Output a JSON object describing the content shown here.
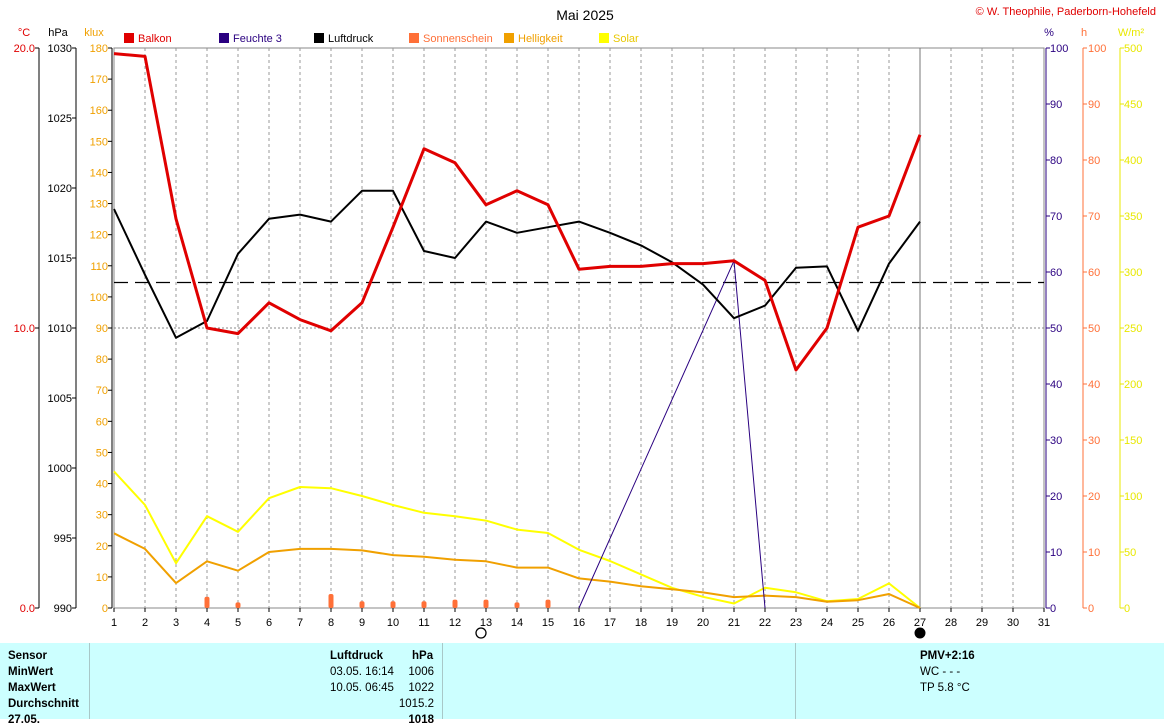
{
  "title": "Mai 2025",
  "copyright": "© W. Theophile, Paderborn-Hohefeld",
  "colors": {
    "balkon": "#e00000",
    "feuchte": "#2a0080",
    "luftdruck": "#000000",
    "sonnenschein": "#ff7038",
    "helligkeit": "#f0a000",
    "solar": "#ffff00",
    "axis_temp": "#e00000",
    "axis_feuchte": "#2a0080",
    "axis_sun": "#ff7038",
    "axis_helligkeit": "#f0a000",
    "axis_solar": "#e8e800",
    "stats_bg": "#ccffff"
  },
  "chart_data": {
    "type": "line",
    "title": "Mai 2025",
    "x": [
      1,
      2,
      3,
      4,
      5,
      6,
      7,
      8,
      9,
      10,
      11,
      12,
      13,
      14,
      15,
      16,
      17,
      18,
      19,
      20,
      21,
      22,
      23,
      24,
      25,
      26,
      27,
      28,
      29,
      30,
      31
    ],
    "x_ticks": [
      "1",
      "2",
      "3",
      "4",
      "5",
      "6",
      "7",
      "8",
      "9",
      "10",
      "11",
      "12",
      "13",
      "14",
      "15",
      "16",
      "17",
      "18",
      "19",
      "20",
      "21",
      "22",
      "23",
      "24",
      "25",
      "26",
      "27",
      "28",
      "29",
      "30",
      "31"
    ],
    "xlim": [
      1,
      31
    ],
    "grid": true,
    "axes": {
      "temp": {
        "unit": "°C",
        "range": [
          0,
          20
        ],
        "ticks": [
          "0.0",
          "10.0",
          "20.0"
        ],
        "tick_values": [
          0,
          10,
          20
        ]
      },
      "pressure": {
        "unit": "hPa",
        "range": [
          990,
          1030
        ],
        "ticks": [
          "990",
          "995",
          "1000",
          "1005",
          "1010",
          "1015",
          "1020",
          "1025",
          "1030"
        ]
      },
      "klux": {
        "unit": "klux",
        "range": [
          0,
          180
        ],
        "ticks": [
          "0",
          "10",
          "20",
          "30",
          "40",
          "50",
          "60",
          "70",
          "80",
          "90",
          "100",
          "110",
          "120",
          "130",
          "140",
          "150",
          "160",
          "170",
          "180"
        ]
      },
      "humidity": {
        "unit": "%",
        "range": [
          0,
          100
        ],
        "ticks": [
          "0",
          "10",
          "20",
          "30",
          "40",
          "50",
          "60",
          "70",
          "80",
          "90",
          "100"
        ]
      },
      "sunshine": {
        "unit": "h",
        "range": [
          0,
          100
        ],
        "ticks": [
          "0",
          "10",
          "20",
          "30",
          "40",
          "50",
          "60",
          "70",
          "80",
          "90",
          "100"
        ]
      },
      "solar": {
        "unit": "W/m²",
        "range": [
          0,
          500
        ],
        "ticks": [
          "0",
          "50",
          "100",
          "150",
          "200",
          "250",
          "300",
          "350",
          "400",
          "450",
          "500"
        ]
      }
    },
    "legend": [
      "Balkon",
      "Feuchte 3",
      "Luftdruck",
      "Sonnenschein",
      "Helligkeit",
      "Solar"
    ],
    "series": [
      {
        "name": "Balkon",
        "axis": "temp",
        "x": [
          1,
          2,
          3,
          4,
          5,
          6,
          7,
          8,
          9,
          10,
          11,
          12,
          13,
          14,
          15,
          16,
          17,
          18,
          19,
          20,
          21,
          22,
          23,
          24,
          25,
          26,
          27
        ],
        "values": [
          19.8,
          19.7,
          13.9,
          10.0,
          9.8,
          10.9,
          10.3,
          9.9,
          10.9,
          13.6,
          16.4,
          15.9,
          14.4,
          14.9,
          14.4,
          12.1,
          12.2,
          12.2,
          12.3,
          12.3,
          12.4,
          11.7,
          8.5,
          10.0,
          13.6,
          14.0,
          16.9
        ]
      },
      {
        "name": "Luftdruck",
        "axis": "pressure",
        "x": [
          1,
          2,
          3,
          4,
          5,
          6,
          7,
          8,
          9,
          10,
          11,
          12,
          13,
          14,
          15,
          16,
          17,
          18,
          19,
          20,
          21,
          22,
          23,
          24,
          25,
          26,
          27
        ],
        "values": [
          1018.5,
          1013.8,
          1009.3,
          1010.5,
          1015.3,
          1017.8,
          1018.1,
          1017.6,
          1019.8,
          1019.8,
          1015.5,
          1015.0,
          1017.6,
          1016.8,
          1017.2,
          1017.6,
          1016.8,
          1015.9,
          1014.7,
          1013.1,
          1010.7,
          1011.6,
          1014.3,
          1014.4,
          1009.8,
          1014.6,
          1017.6
        ]
      },
      {
        "name": "Feuchte 3",
        "axis": "humidity",
        "x": [
          16,
          21,
          22
        ],
        "values": [
          0,
          62,
          0
        ]
      },
      {
        "name": "Sonnenschein",
        "axis": "sunshine",
        "style": "bars",
        "x": [
          4,
          5,
          8,
          9,
          10,
          11,
          12,
          13,
          14,
          15
        ],
        "values": [
          2,
          1,
          2.5,
          1.2,
          1.2,
          1.2,
          1.5,
          1.5,
          1,
          1.5
        ]
      },
      {
        "name": "Helligkeit",
        "axis": "klux",
        "x": [
          1,
          2,
          3,
          4,
          5,
          6,
          7,
          8,
          9,
          10,
          11,
          12,
          13,
          14,
          15,
          16,
          17,
          18,
          19,
          20,
          21,
          22,
          23,
          24,
          25,
          26,
          27
        ],
        "values": [
          24,
          19,
          8,
          15,
          12,
          18,
          19,
          19,
          18.5,
          17,
          16.5,
          15.5,
          15,
          13,
          13,
          9.5,
          8.5,
          7,
          6,
          5,
          3.5,
          4,
          3.5,
          2,
          2.5,
          4.5,
          0
        ]
      },
      {
        "name": "Solar",
        "axis": "solar",
        "x": [
          1,
          2,
          3,
          4,
          5,
          6,
          7,
          8,
          9,
          10,
          11,
          12,
          13,
          14,
          15,
          16,
          17,
          18,
          19,
          20,
          21,
          22,
          23,
          24,
          25,
          26,
          27
        ],
        "values": [
          122,
          92,
          40,
          82,
          68,
          98,
          108,
          107,
          100,
          92,
          85,
          82,
          78,
          70,
          67,
          52,
          42,
          30,
          18,
          10,
          4,
          18,
          14,
          6,
          8,
          22,
          0
        ]
      }
    ],
    "reference_lines": [
      {
        "axis": "pressure",
        "value": 1013.25,
        "style": "long-dash"
      }
    ],
    "annotations": [
      "new-moon at day 13",
      "full moon at day 27",
      "today marker at day 27"
    ]
  },
  "stats": {
    "headers": {
      "sensor": "Sensor",
      "quantity": "Luftdruck",
      "unit": "hPa"
    },
    "rows": [
      {
        "label": "MinWert",
        "date": "03.05.  16:14",
        "value": "1006"
      },
      {
        "label": "MaxWert",
        "date": "10.05.  06:45",
        "value": "1022"
      },
      {
        "label": "Durchschnitt",
        "date": "",
        "value": "1015.2"
      },
      {
        "label": "27.05.",
        "date": "",
        "value": "1018"
      }
    ],
    "right": {
      "pmv": "PMV+2:16",
      "wc": "WC - - -",
      "tp": "TP 5.8 °C"
    }
  }
}
